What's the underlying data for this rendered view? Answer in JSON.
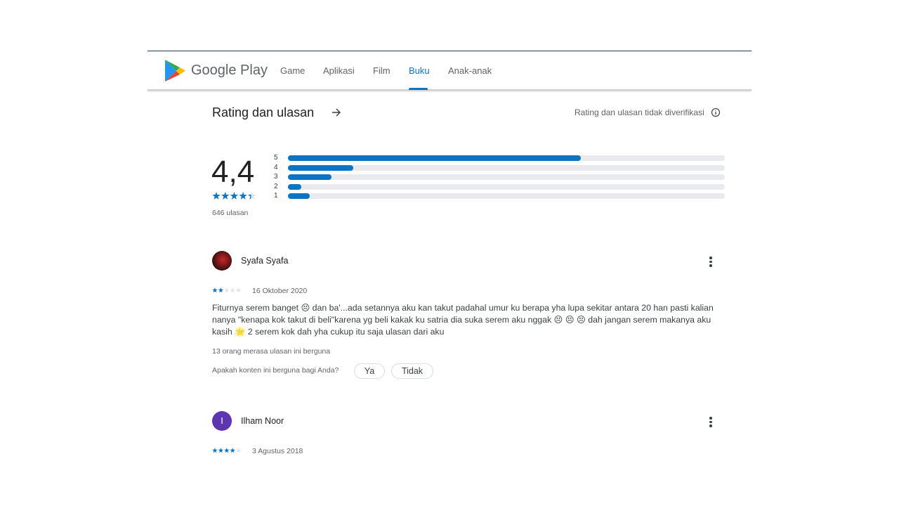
{
  "header": {
    "brand": "Google Play",
    "nav": [
      "Game",
      "Aplikasi",
      "Film",
      "Buku",
      "Anak-anak"
    ],
    "active_nav": 3
  },
  "ratings": {
    "title": "Rating dan ulasan",
    "note": "Rating dan ulasan tidak diverifikasi",
    "score": "4,4",
    "stars": 4.4,
    "count": "646 ulasan",
    "distribution": [
      {
        "label": "5",
        "value": 67
      },
      {
        "label": "4",
        "value": 15
      },
      {
        "label": "3",
        "value": 10
      },
      {
        "label": "2",
        "value": 3
      },
      {
        "label": "1",
        "value": 5
      }
    ]
  },
  "reviews": [
    {
      "author": "Syafa Syafa",
      "stars": 2,
      "date": "16 Oktober 2020",
      "text": "Fiturnya serem banget 😣 dan ba'...ada setannya aku kan takut padahal umur ku berapa yha lupa sekitar antara 20 han pasti kalian nanya \"kenapa kok takut di beli\"karena yg beli kakak ku satria dia suka serem aku nggak 😣 😣 😣 dah jangan serem makanya aku kasih 🌟 2 serem kok dah yha cukup itu saja ulasan dari aku",
      "helpful": "13 orang merasa ulasan ini berguna",
      "question": "Apakah konten ini berguna bagi Anda?",
      "buttons": [
        "Ya",
        "Tidak"
      ]
    },
    {
      "author": "Ilham Noor",
      "avatar_letter": "I",
      "stars": 4,
      "date": "3 Agustus 2018"
    }
  ]
}
